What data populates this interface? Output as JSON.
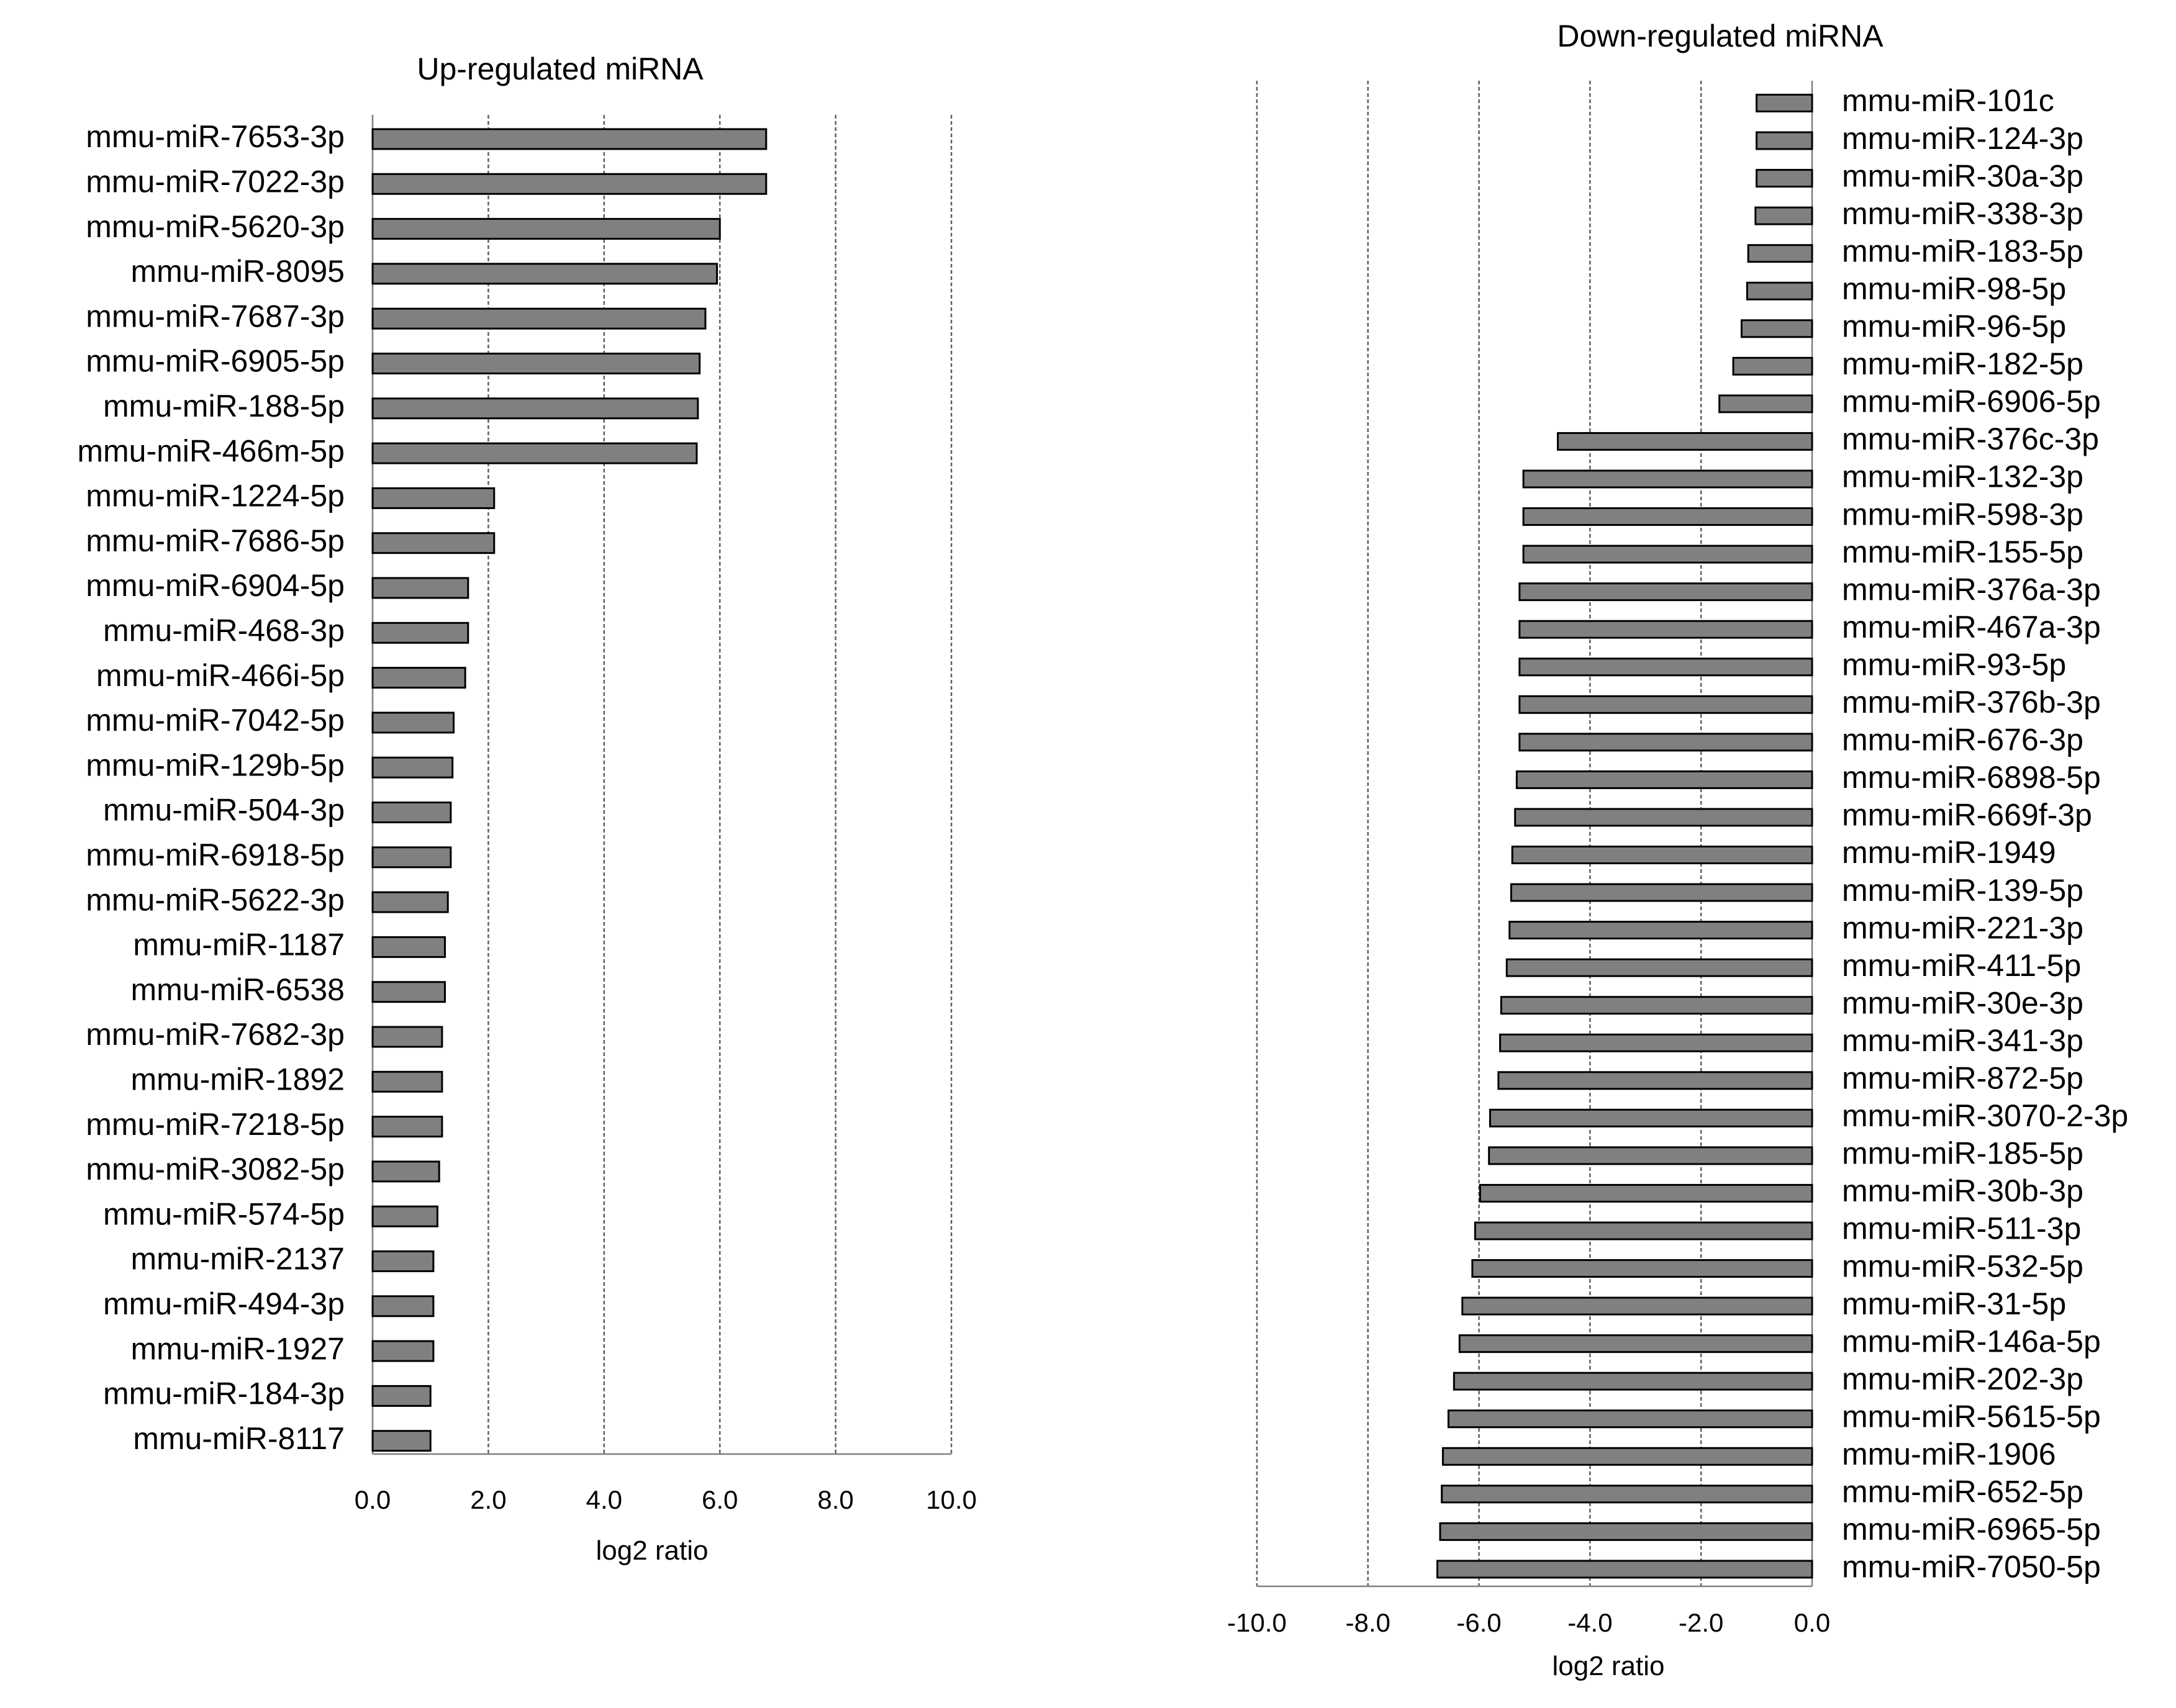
{
  "chart_data": [
    {
      "type": "bar",
      "orientation": "horizontal",
      "title": "Up-regulated miRNA",
      "xlabel": "log2 ratio",
      "ylabel": "",
      "xlim": [
        0,
        10
      ],
      "xticks": [
        0,
        2,
        4,
        6,
        8,
        10
      ],
      "xtick_labels": [
        "0.0",
        "2.0",
        "4.0",
        "6.0",
        "8.0",
        "10.0"
      ],
      "grid": "vertical dashed",
      "categories": [
        "mmu-miR-7653-3p",
        "mmu-miR-7022-3p",
        "mmu-miR-5620-3p",
        "mmu-miR-8095",
        "mmu-miR-7687-3p",
        "mmu-miR-6905-5p",
        "mmu-miR-188-5p",
        "mmu-miR-466m-5p",
        "mmu-miR-1224-5p",
        "mmu-miR-7686-5p",
        "mmu-miR-6904-5p",
        "mmu-miR-468-3p",
        "mmu-miR-466i-5p",
        "mmu-miR-7042-5p",
        "mmu-miR-129b-5p",
        "mmu-miR-504-3p",
        "mmu-miR-6918-5p",
        "mmu-miR-5622-3p",
        "mmu-miR-1187",
        "mmu-miR-6538",
        "mmu-miR-7682-3p",
        "mmu-miR-1892",
        "mmu-miR-7218-5p",
        "mmu-miR-3082-5p",
        "mmu-miR-574-5p",
        "mmu-miR-2137",
        "mmu-miR-494-3p",
        "mmu-miR-1927",
        "mmu-miR-184-3p",
        "mmu-miR-8117"
      ],
      "values": [
        6.8,
        6.8,
        6.0,
        5.95,
        5.75,
        5.65,
        5.62,
        5.6,
        2.1,
        2.1,
        1.65,
        1.65,
        1.6,
        1.4,
        1.38,
        1.35,
        1.35,
        1.3,
        1.25,
        1.25,
        1.2,
        1.2,
        1.2,
        1.15,
        1.12,
        1.05,
        1.05,
        1.05,
        1.0,
        1.0
      ]
    },
    {
      "type": "bar",
      "orientation": "horizontal",
      "title": "Down-regulated miRNA",
      "xlabel": "log2 ratio",
      "ylabel": "",
      "xlim": [
        -10,
        0
      ],
      "xticks": [
        -10,
        -8,
        -6,
        -4,
        -2,
        0
      ],
      "xtick_labels": [
        "-10.0",
        "-8.0",
        "-6.0",
        "-4.0",
        "-2.0",
        "0.0"
      ],
      "grid": "vertical dashed",
      "categories": [
        "mmu-miR-101c",
        "mmu-miR-124-3p",
        "mmu-miR-30a-3p",
        "mmu-miR-338-3p",
        "mmu-miR-183-5p",
        "mmu-miR-98-5p",
        "mmu-miR-96-5p",
        "mmu-miR-182-5p",
        "mmu-miR-6906-5p",
        "mmu-miR-376c-3p",
        "mmu-miR-132-3p",
        "mmu-miR-598-3p",
        "mmu-miR-155-5p",
        "mmu-miR-376a-3p",
        "mmu-miR-467a-3p",
        "mmu-miR-93-5p",
        "mmu-miR-376b-3p",
        "mmu-miR-676-3p",
        "mmu-miR-6898-5p",
        "mmu-miR-669f-3p",
        "mmu-miR-1949",
        "mmu-miR-139-5p",
        "mmu-miR-221-3p",
        "mmu-miR-411-5p",
        "mmu-miR-30e-3p",
        "mmu-miR-341-3p",
        "mmu-miR-872-5p",
        "mmu-miR-3070-2-3p",
        "mmu-miR-185-5p",
        "mmu-miR-30b-3p",
        "mmu-miR-511-3p",
        "mmu-miR-532-5p",
        "mmu-miR-31-5p",
        "mmu-miR-146a-5p",
        "mmu-miR-202-3p",
        "mmu-miR-5615-5p",
        "mmu-miR-1906",
        "mmu-miR-652-5p",
        "mmu-miR-6965-5p",
        "mmu-miR-7050-5p"
      ],
      "values": [
        -1.0,
        -1.0,
        -1.0,
        -1.02,
        -1.15,
        -1.17,
        -1.27,
        -1.42,
        -1.67,
        -4.58,
        -5.2,
        -5.2,
        -5.2,
        -5.27,
        -5.27,
        -5.27,
        -5.27,
        -5.27,
        -5.32,
        -5.35,
        -5.4,
        -5.42,
        -5.45,
        -5.5,
        -5.6,
        -5.62,
        -5.65,
        -5.8,
        -5.82,
        -5.98,
        -6.07,
        -6.12,
        -6.3,
        -6.35,
        -6.45,
        -6.55,
        -6.65,
        -6.67,
        -6.7,
        -6.75
      ]
    }
  ]
}
